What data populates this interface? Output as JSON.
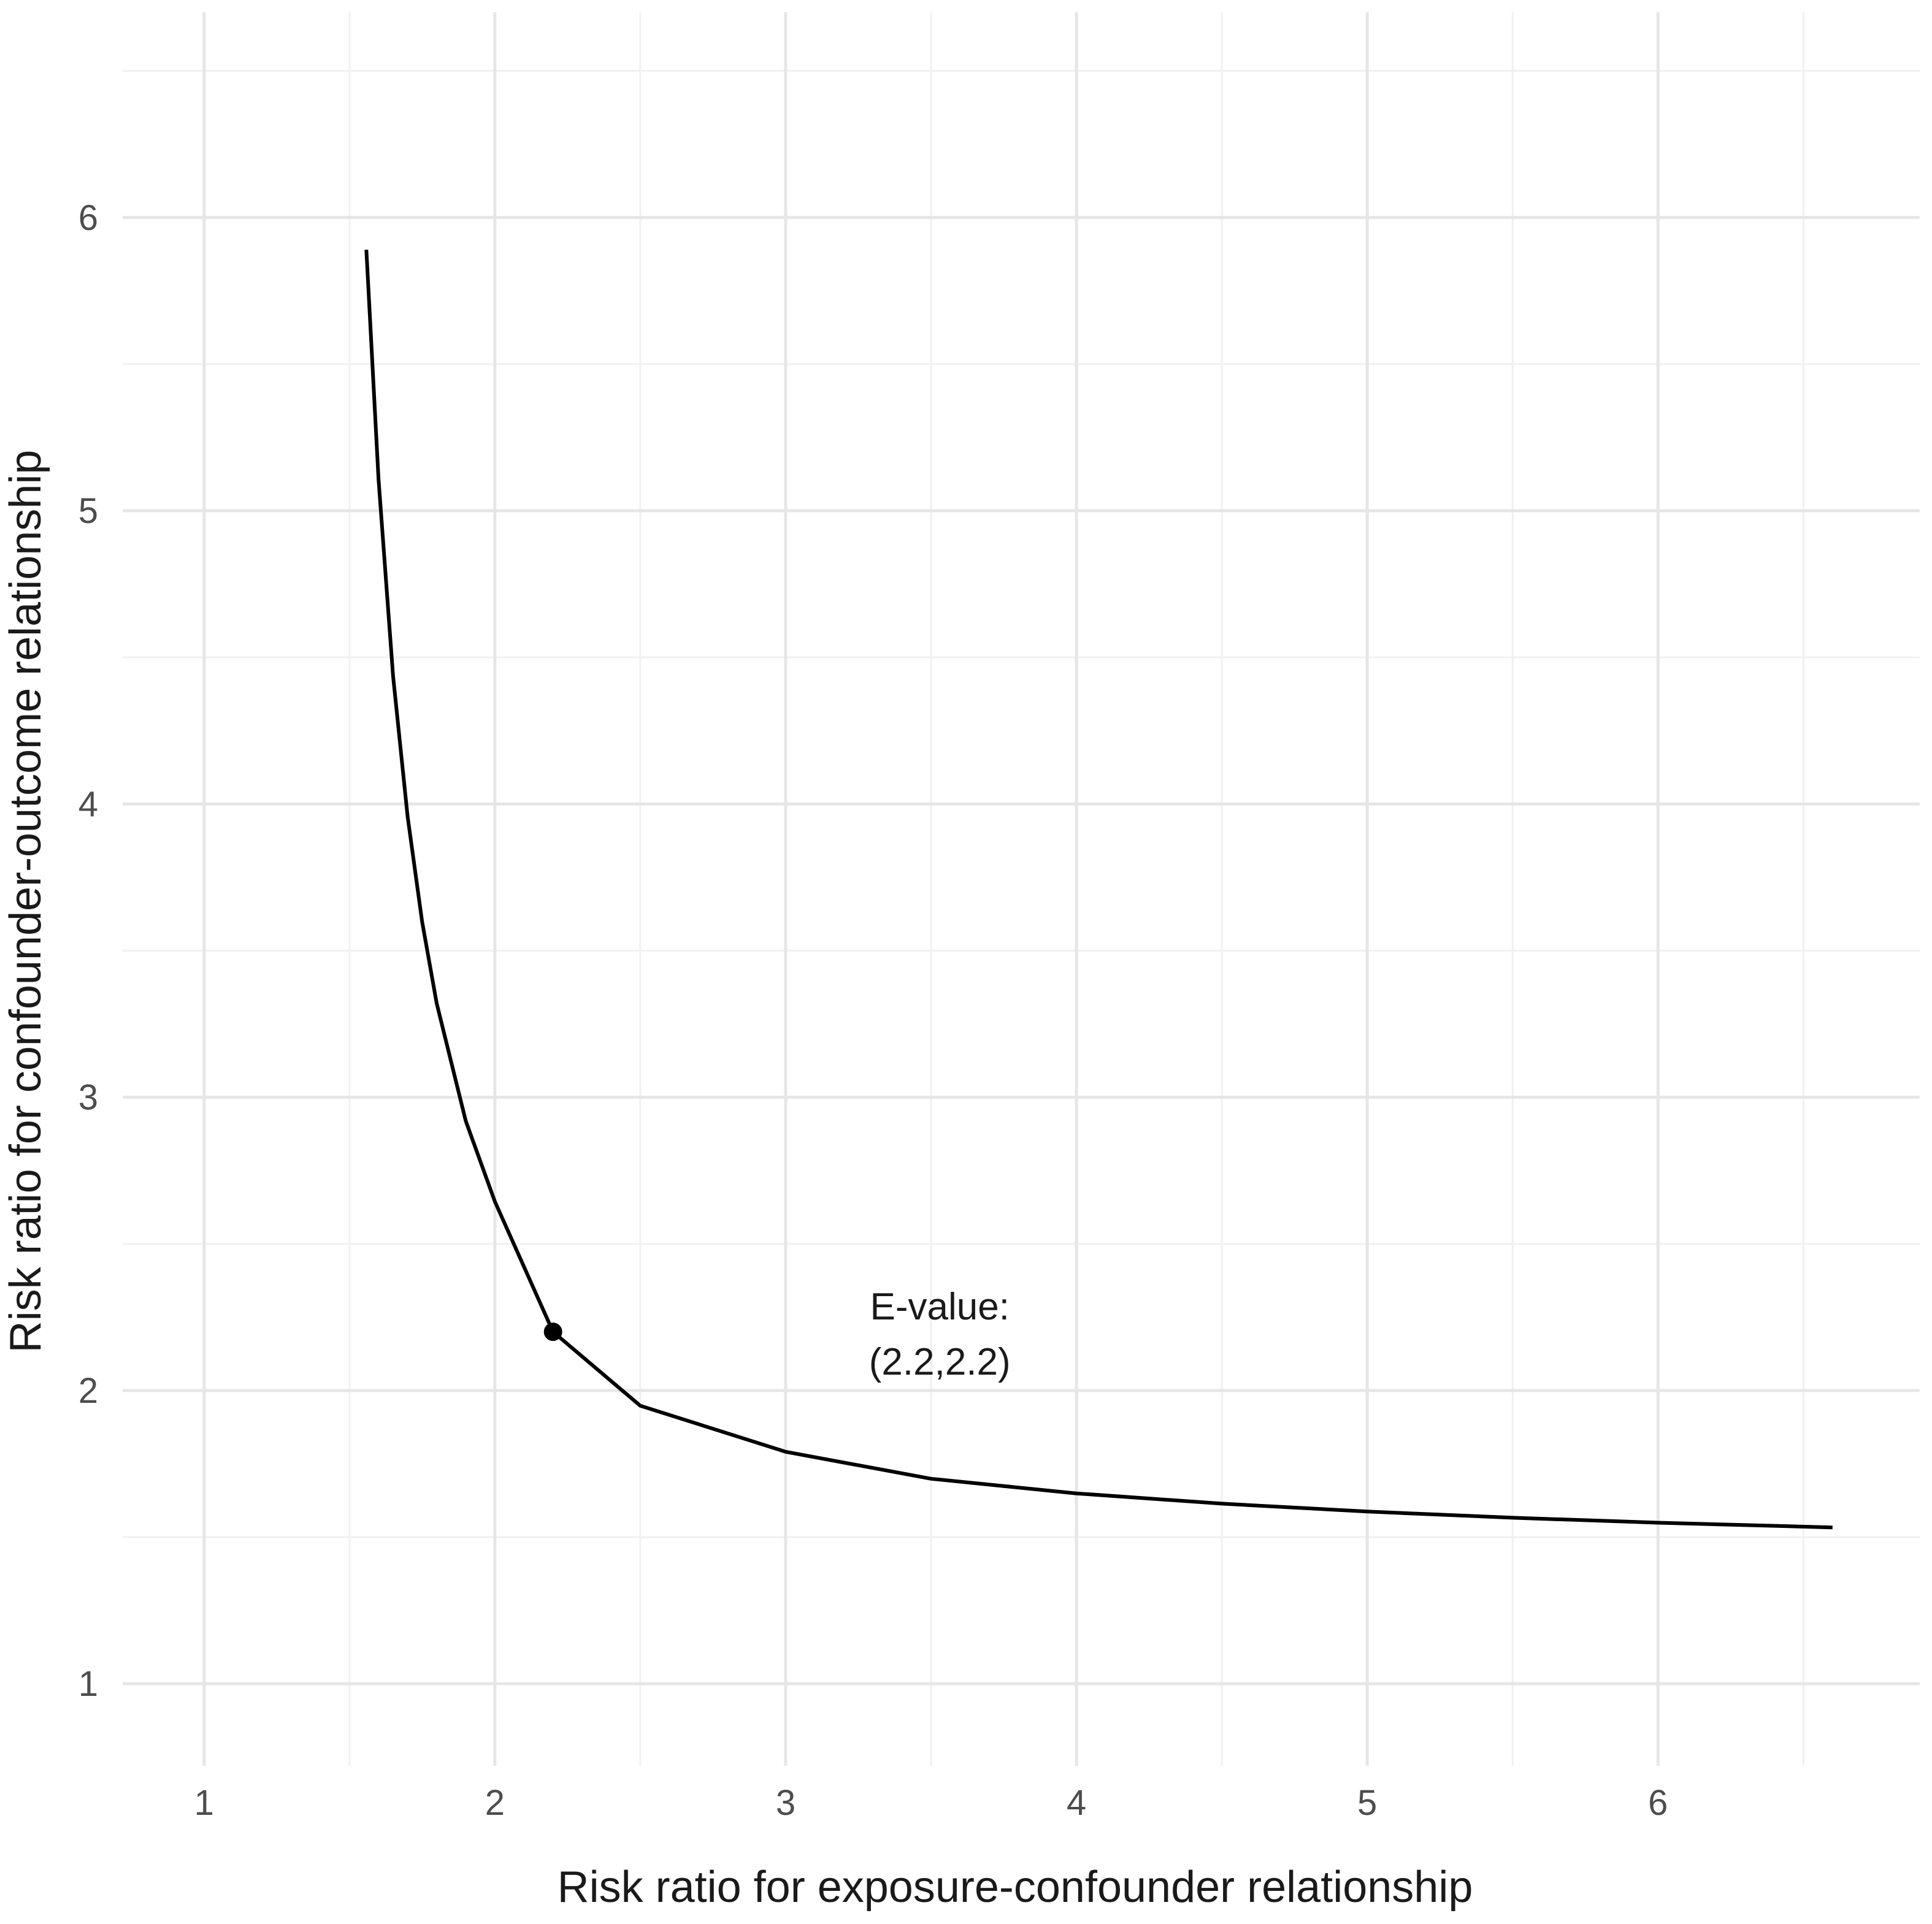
{
  "chart_data": {
    "type": "line",
    "title": "",
    "xlabel": "Risk ratio for exposure-confounder relationship",
    "ylabel": "Risk ratio for confounder-outcome relationship",
    "xlim": [
      0.72,
      6.9
    ],
    "ylim": [
      0.72,
      6.7
    ],
    "x_ticks": [
      1,
      2,
      3,
      4,
      5,
      6
    ],
    "y_ticks": [
      1,
      2,
      3,
      4,
      5,
      6
    ],
    "grid": true,
    "series": [
      {
        "x": [
          1.558,
          1.6,
          1.65,
          1.7,
          1.75,
          1.8,
          1.9,
          2.0,
          2.2,
          2.5,
          3.0,
          3.5,
          4.0,
          4.5,
          5.0,
          5.5,
          6.0,
          6.6
        ],
        "y": [
          5.89,
          5.107,
          4.436,
          3.957,
          3.598,
          3.32,
          2.919,
          2.644,
          2.2,
          1.948,
          1.791,
          1.699,
          1.649,
          1.614,
          1.587,
          1.566,
          1.549,
          1.533
        ]
      }
    ],
    "point": {
      "x": 2.2,
      "y": 2.2
    },
    "annotation": {
      "line1": "E-value:",
      "line2": "(2.2,2.2)",
      "x": 3.53,
      "y": 2.2
    }
  }
}
